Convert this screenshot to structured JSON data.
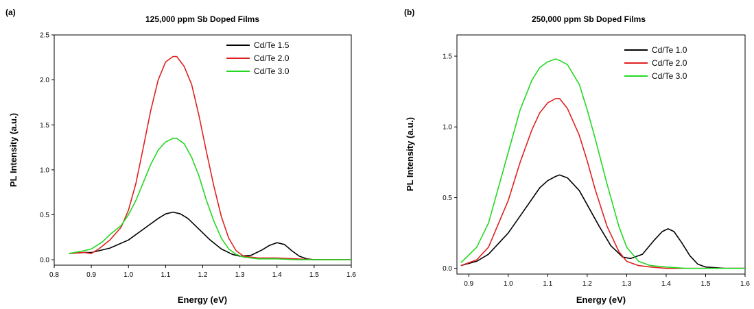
{
  "chart_data": [
    {
      "type": "line",
      "panel_label": "(a)",
      "title": "125,000 ppm Sb Doped Films",
      "xlabel": "Energy (eV)",
      "ylabel": "PL Intensity (a.u.)",
      "xlim": [
        0.8,
        1.6
      ],
      "ylim": [
        -0.06,
        2.5
      ],
      "xticks": [
        "0.8",
        "0.9",
        "1.0",
        "1.1",
        "1.2",
        "1.3",
        "1.4",
        "1.5",
        "1.6"
      ],
      "yticks": [
        "0.0",
        "0.5",
        "1.0",
        "1.5",
        "2.0",
        "2.5"
      ],
      "grid": false,
      "legend_position": "top-right",
      "series": [
        {
          "name": "Cd/Te 1.5",
          "color": "#000000",
          "x": [
            0.84,
            0.88,
            0.9,
            0.95,
            1.0,
            1.05,
            1.08,
            1.1,
            1.12,
            1.14,
            1.16,
            1.18,
            1.2,
            1.22,
            1.25,
            1.28,
            1.3,
            1.33,
            1.36,
            1.38,
            1.4,
            1.42,
            1.44,
            1.46,
            1.48,
            1.5,
            1.55,
            1.6
          ],
          "y": [
            0.07,
            0.08,
            0.08,
            0.13,
            0.22,
            0.37,
            0.46,
            0.51,
            0.53,
            0.51,
            0.46,
            0.38,
            0.3,
            0.22,
            0.12,
            0.06,
            0.04,
            0.05,
            0.11,
            0.16,
            0.19,
            0.17,
            0.1,
            0.04,
            0.01,
            0.0,
            0.0,
            0.0
          ]
        },
        {
          "name": "Cd/Te 2.0",
          "color": "#e02020",
          "x": [
            0.84,
            0.88,
            0.9,
            0.92,
            0.95,
            0.98,
            1.0,
            1.02,
            1.04,
            1.06,
            1.08,
            1.1,
            1.12,
            1.13,
            1.15,
            1.17,
            1.19,
            1.21,
            1.23,
            1.25,
            1.27,
            1.29,
            1.31,
            1.35,
            1.4,
            1.45,
            1.5,
            1.55,
            1.6
          ],
          "y": [
            0.07,
            0.08,
            0.07,
            0.12,
            0.22,
            0.36,
            0.55,
            0.85,
            1.25,
            1.66,
            2.0,
            2.2,
            2.26,
            2.26,
            2.15,
            1.95,
            1.6,
            1.2,
            0.82,
            0.48,
            0.24,
            0.1,
            0.04,
            0.02,
            0.02,
            0.01,
            0.0,
            0.0,
            0.0
          ]
        },
        {
          "name": "Cd/Te 3.0",
          "color": "#22d822",
          "x": [
            0.84,
            0.88,
            0.9,
            0.93,
            0.95,
            0.98,
            1.0,
            1.02,
            1.04,
            1.06,
            1.08,
            1.1,
            1.12,
            1.13,
            1.15,
            1.17,
            1.19,
            1.21,
            1.23,
            1.25,
            1.27,
            1.29,
            1.31,
            1.35,
            1.4,
            1.45,
            1.5,
            1.55,
            1.6
          ],
          "y": [
            0.07,
            0.1,
            0.12,
            0.2,
            0.28,
            0.38,
            0.5,
            0.66,
            0.86,
            1.06,
            1.22,
            1.31,
            1.35,
            1.35,
            1.29,
            1.14,
            0.93,
            0.66,
            0.43,
            0.24,
            0.12,
            0.06,
            0.03,
            0.01,
            0.01,
            0.0,
            0.0,
            0.0,
            0.0
          ]
        }
      ]
    },
    {
      "type": "line",
      "panel_label": "(b)",
      "title": "250,000 ppm Sb Doped Films",
      "xlabel": "Energy (eV)",
      "ylabel": "PL Intensity (a.u.)",
      "xlim": [
        0.87,
        1.6
      ],
      "ylim": [
        -0.04,
        1.65
      ],
      "xticks": [
        "0.9",
        "1.0",
        "1.1",
        "1.2",
        "1.3",
        "1.4",
        "1.5",
        "1.6"
      ],
      "yticks": [
        "0.0",
        "0.5",
        "1.0",
        "1.5"
      ],
      "grid": false,
      "legend_position": "top-right",
      "series": [
        {
          "name": "Cd/Te 1.0",
          "color": "#000000",
          "x": [
            0.88,
            0.92,
            0.95,
            1.0,
            1.05,
            1.08,
            1.1,
            1.12,
            1.13,
            1.15,
            1.18,
            1.2,
            1.23,
            1.26,
            1.29,
            1.31,
            1.34,
            1.37,
            1.39,
            1.405,
            1.42,
            1.44,
            1.46,
            1.48,
            1.5,
            1.55,
            1.6
          ],
          "y": [
            0.02,
            0.05,
            0.1,
            0.25,
            0.45,
            0.57,
            0.62,
            0.65,
            0.66,
            0.64,
            0.55,
            0.45,
            0.3,
            0.16,
            0.08,
            0.07,
            0.1,
            0.2,
            0.26,
            0.28,
            0.26,
            0.18,
            0.09,
            0.03,
            0.01,
            0.0,
            0.0
          ]
        },
        {
          "name": "Cd/Te 2.0",
          "color": "#e02020",
          "x": [
            0.88,
            0.92,
            0.95,
            1.0,
            1.03,
            1.06,
            1.08,
            1.1,
            1.12,
            1.13,
            1.15,
            1.18,
            1.2,
            1.22,
            1.25,
            1.28,
            1.3,
            1.33,
            1.36,
            1.4,
            1.45,
            1.5,
            1.55,
            1.6
          ],
          "y": [
            0.02,
            0.06,
            0.15,
            0.48,
            0.75,
            0.98,
            1.1,
            1.17,
            1.2,
            1.2,
            1.13,
            0.94,
            0.76,
            0.56,
            0.3,
            0.12,
            0.05,
            0.02,
            0.01,
            0.0,
            0.0,
            0.0,
            0.0,
            0.0
          ]
        },
        {
          "name": "Cd/Te 3.0",
          "color": "#22d822",
          "x": [
            0.88,
            0.92,
            0.95,
            1.0,
            1.03,
            1.06,
            1.08,
            1.1,
            1.12,
            1.13,
            1.15,
            1.18,
            1.2,
            1.22,
            1.25,
            1.28,
            1.3,
            1.33,
            1.36,
            1.4,
            1.45,
            1.5,
            1.55,
            1.6
          ],
          "y": [
            0.04,
            0.15,
            0.32,
            0.82,
            1.12,
            1.33,
            1.42,
            1.46,
            1.48,
            1.47,
            1.44,
            1.3,
            1.12,
            0.92,
            0.6,
            0.3,
            0.15,
            0.05,
            0.02,
            0.01,
            0.0,
            0.0,
            0.0,
            0.0
          ]
        }
      ]
    }
  ]
}
